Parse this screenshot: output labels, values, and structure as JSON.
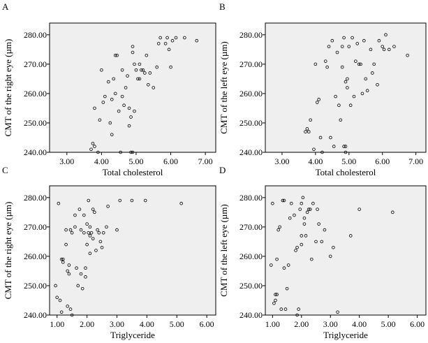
{
  "colors": {
    "plot_bg": "#efefef",
    "frame": "#000000",
    "marker": "#000000",
    "page_bg": "#ffffff"
  },
  "chart_data": [
    {
      "type": "scatter",
      "panel": "A",
      "xlabel": "Total cholesterol",
      "ylabel": "CMT of the right eye (µm)",
      "xlim": [
        2.5,
        7.3
      ],
      "ylim": [
        240,
        284
      ],
      "x_ticks": [
        3.0,
        4.0,
        5.0,
        6.0,
        7.0
      ],
      "x_tick_labels": [
        "3.00",
        "4.00",
        "5.00",
        "6.00",
        "7.00"
      ],
      "y_ticks": [
        240,
        250,
        260,
        270,
        280
      ],
      "y_tick_labels": [
        "240.00",
        "250.00",
        "260.00",
        "270.00",
        "280.00"
      ],
      "points": [
        [
          3.7,
          241
        ],
        [
          3.75,
          243
        ],
        [
          3.8,
          242
        ],
        [
          3.8,
          255
        ],
        [
          3.9,
          240
        ],
        [
          3.95,
          251
        ],
        [
          4.0,
          268
        ],
        [
          4.05,
          257
        ],
        [
          4.1,
          259
        ],
        [
          4.2,
          264
        ],
        [
          4.25,
          250
        ],
        [
          4.3,
          246
        ],
        [
          4.3,
          258
        ],
        [
          4.35,
          265
        ],
        [
          4.4,
          273
        ],
        [
          4.4,
          260
        ],
        [
          4.45,
          273
        ],
        [
          4.5,
          254
        ],
        [
          4.55,
          240
        ],
        [
          4.6,
          268
        ],
        [
          4.6,
          259
        ],
        [
          4.65,
          256
        ],
        [
          4.7,
          262
        ],
        [
          4.75,
          266
        ],
        [
          4.8,
          249
        ],
        [
          4.8,
          255
        ],
        [
          4.85,
          240
        ],
        [
          4.85,
          252
        ],
        [
          4.9,
          240
        ],
        [
          4.9,
          274
        ],
        [
          4.9,
          276
        ],
        [
          4.95,
          270
        ],
        [
          4.95,
          254
        ],
        [
          5.0,
          268
        ],
        [
          5.05,
          265
        ],
        [
          5.1,
          265
        ],
        [
          5.1,
          270
        ],
        [
          5.15,
          268
        ],
        [
          5.2,
          268
        ],
        [
          5.25,
          267
        ],
        [
          5.3,
          273
        ],
        [
          5.35,
          263
        ],
        [
          5.4,
          267
        ],
        [
          5.5,
          262
        ],
        [
          5.6,
          269
        ],
        [
          5.65,
          277
        ],
        [
          5.7,
          279
        ],
        [
          5.85,
          277
        ],
        [
          5.9,
          279
        ],
        [
          5.95,
          275
        ],
        [
          6.0,
          269
        ],
        [
          6.05,
          278
        ],
        [
          6.15,
          279
        ],
        [
          6.4,
          279
        ],
        [
          6.75,
          278
        ]
      ]
    },
    {
      "type": "scatter",
      "panel": "B",
      "xlabel": "Total cholesterol",
      "ylabel": "CMT of the left eye (µm)",
      "xlim": [
        2.5,
        7.3
      ],
      "ylim": [
        240,
        284
      ],
      "x_ticks": [
        3.0,
        4.0,
        5.0,
        6.0,
        7.0
      ],
      "x_tick_labels": [
        "3.00",
        "4.00",
        "5.00",
        "6.00",
        "7.00"
      ],
      "y_ticks": [
        240,
        250,
        260,
        270,
        280
      ],
      "y_tick_labels": [
        "240.00",
        "250.00",
        "260.00",
        "270.00",
        "280.00"
      ],
      "points": [
        [
          3.7,
          247
        ],
        [
          3.75,
          248
        ],
        [
          3.8,
          247
        ],
        [
          3.85,
          251
        ],
        [
          3.95,
          241
        ],
        [
          4.0,
          270
        ],
        [
          4.05,
          257
        ],
        [
          4.1,
          258
        ],
        [
          4.15,
          245
        ],
        [
          4.2,
          240
        ],
        [
          4.3,
          271
        ],
        [
          4.35,
          269
        ],
        [
          4.4,
          276
        ],
        [
          4.45,
          245
        ],
        [
          4.5,
          278
        ],
        [
          4.55,
          242
        ],
        [
          4.6,
          259
        ],
        [
          4.65,
          274
        ],
        [
          4.7,
          256
        ],
        [
          4.75,
          251
        ],
        [
          4.8,
          269
        ],
        [
          4.8,
          276
        ],
        [
          4.85,
          279
        ],
        [
          4.85,
          242
        ],
        [
          4.9,
          240
        ],
        [
          4.9,
          242
        ],
        [
          4.9,
          264
        ],
        [
          4.95,
          262
        ],
        [
          4.95,
          265
        ],
        [
          5.0,
          276
        ],
        [
          5.05,
          256
        ],
        [
          5.1,
          279
        ],
        [
          5.15,
          259
        ],
        [
          5.2,
          271
        ],
        [
          5.25,
          277
        ],
        [
          5.3,
          270
        ],
        [
          5.35,
          270
        ],
        [
          5.4,
          260
        ],
        [
          5.45,
          278
        ],
        [
          5.5,
          265
        ],
        [
          5.55,
          261
        ],
        [
          5.65,
          275
        ],
        [
          5.7,
          267
        ],
        [
          5.75,
          270
        ],
        [
          5.85,
          263
        ],
        [
          5.9,
          278
        ],
        [
          6.0,
          276
        ],
        [
          6.05,
          275
        ],
        [
          6.1,
          280
        ],
        [
          6.2,
          275
        ],
        [
          6.35,
          276
        ],
        [
          6.75,
          273
        ]
      ]
    },
    {
      "type": "scatter",
      "panel": "C",
      "xlabel": "Triglyceride",
      "ylabel": "CMT of the right eye (µm)",
      "xlim": [
        0.75,
        6.3
      ],
      "ylim": [
        240,
        284
      ],
      "x_ticks": [
        1.0,
        2.0,
        3.0,
        4.0,
        5.0,
        6.0
      ],
      "x_tick_labels": [
        "1.00",
        "2.00",
        "3.00",
        "4.00",
        "5.00",
        "6.00"
      ],
      "y_ticks": [
        240,
        250,
        260,
        270,
        280
      ],
      "y_tick_labels": [
        "240.00",
        "250.00",
        "260.00",
        "270.00",
        "280.00"
      ],
      "points": [
        [
          0.95,
          250
        ],
        [
          1.0,
          246
        ],
        [
          1.05,
          278
        ],
        [
          1.1,
          245
        ],
        [
          1.15,
          259
        ],
        [
          1.15,
          241
        ],
        [
          1.2,
          259
        ],
        [
          1.2,
          258
        ],
        [
          1.3,
          264
        ],
        [
          1.3,
          269
        ],
        [
          1.35,
          255
        ],
        [
          1.35,
          243
        ],
        [
          1.4,
          254
        ],
        [
          1.4,
          257
        ],
        [
          1.45,
          242
        ],
        [
          1.45,
          269
        ],
        [
          1.5,
          240
        ],
        [
          1.5,
          268
        ],
        [
          1.6,
          270
        ],
        [
          1.6,
          274
        ],
        [
          1.65,
          256
        ],
        [
          1.7,
          250
        ],
        [
          1.75,
          276
        ],
        [
          1.8,
          269
        ],
        [
          1.8,
          254
        ],
        [
          1.85,
          249
        ],
        [
          1.9,
          274
        ],
        [
          1.9,
          268
        ],
        [
          1.95,
          253
        ],
        [
          1.95,
          256
        ],
        [
          2.0,
          264
        ],
        [
          2.0,
          271
        ],
        [
          2.05,
          279
        ],
        [
          2.05,
          268
        ],
        [
          2.1,
          267
        ],
        [
          2.1,
          270
        ],
        [
          2.1,
          261
        ],
        [
          2.15,
          268
        ],
        [
          2.2,
          266
        ],
        [
          2.2,
          276
        ],
        [
          2.25,
          275
        ],
        [
          2.3,
          262
        ],
        [
          2.35,
          269
        ],
        [
          2.4,
          268
        ],
        [
          2.45,
          265
        ],
        [
          2.5,
          263
        ],
        [
          2.55,
          268
        ],
        [
          2.65,
          270
        ],
        [
          2.7,
          277
        ],
        [
          3.0,
          269
        ],
        [
          3.1,
          279
        ],
        [
          3.5,
          279
        ],
        [
          3.95,
          279
        ],
        [
          5.15,
          278
        ]
      ]
    },
    {
      "type": "scatter",
      "panel": "D",
      "xlabel": "Triglyceride",
      "ylabel": "CMT of the left eye (µm)",
      "xlim": [
        0.75,
        6.3
      ],
      "ylim": [
        240,
        284
      ],
      "x_ticks": [
        1.0,
        2.0,
        3.0,
        4.0,
        5.0,
        6.0
      ],
      "x_tick_labels": [
        "1.00",
        "2.00",
        "3.00",
        "4.00",
        "5.00",
        "6.00"
      ],
      "y_ticks": [
        240,
        250,
        260,
        270,
        280
      ],
      "y_tick_labels": [
        "240.00",
        "250.00",
        "260.00",
        "270.00",
        "280.00"
      ],
      "points": [
        [
          0.95,
          257
        ],
        [
          1.0,
          278
        ],
        [
          1.05,
          244
        ],
        [
          1.1,
          245
        ],
        [
          1.1,
          247
        ],
        [
          1.15,
          247
        ],
        [
          1.15,
          259
        ],
        [
          1.2,
          269
        ],
        [
          1.25,
          270
        ],
        [
          1.3,
          242
        ],
        [
          1.35,
          279
        ],
        [
          1.4,
          256
        ],
        [
          1.4,
          279
        ],
        [
          1.45,
          242
        ],
        [
          1.5,
          249
        ],
        [
          1.55,
          257
        ],
        [
          1.6,
          273
        ],
        [
          1.65,
          278
        ],
        [
          1.75,
          274
        ],
        [
          1.8,
          262
        ],
        [
          1.85,
          263
        ],
        [
          1.85,
          240
        ],
        [
          1.9,
          242
        ],
        [
          1.95,
          276
        ],
        [
          2.0,
          278
        ],
        [
          2.0,
          264
        ],
        [
          2.0,
          267
        ],
        [
          2.05,
          280
        ],
        [
          2.1,
          271
        ],
        [
          2.1,
          273
        ],
        [
          2.15,
          267
        ],
        [
          2.2,
          275
        ],
        [
          2.25,
          276
        ],
        [
          2.3,
          276
        ],
        [
          2.35,
          259
        ],
        [
          2.4,
          278
        ],
        [
          2.5,
          265
        ],
        [
          2.55,
          276
        ],
        [
          2.6,
          271
        ],
        [
          2.7,
          265
        ],
        [
          2.8,
          269
        ],
        [
          3.0,
          260
        ],
        [
          3.1,
          263
        ],
        [
          3.25,
          241
        ],
        [
          3.7,
          267
        ],
        [
          4.0,
          276
        ],
        [
          5.15,
          275
        ]
      ]
    }
  ]
}
